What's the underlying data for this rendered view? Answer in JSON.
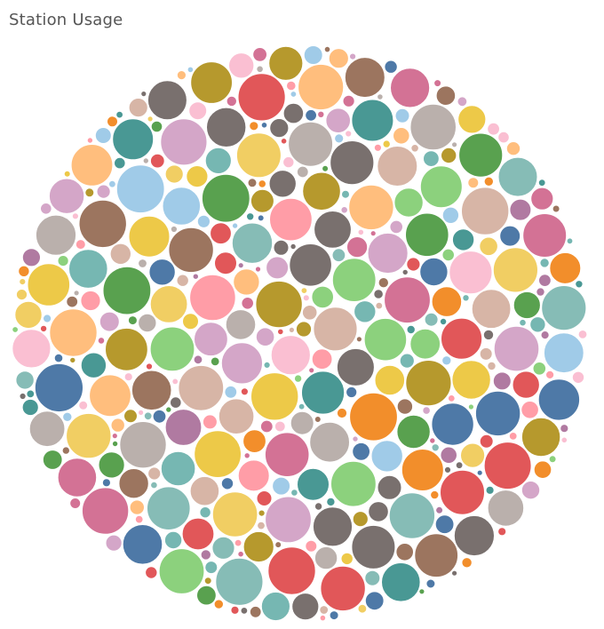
{
  "chart_data": {
    "type": "bubble",
    "title": "Station Usage",
    "legend": "none",
    "grid": false,
    "palette": [
      "#4e79a7",
      "#f28e2b",
      "#e15759",
      "#76b7b2",
      "#59a14f",
      "#edc948",
      "#b07aa1",
      "#ff9da7",
      "#9c755f",
      "#bab0ac",
      "#a0cbe8",
      "#ffbe7d",
      "#8cd17d",
      "#b6992d",
      "#499894",
      "#86bcb6",
      "#d37295",
      "#fabfd2",
      "#79706e",
      "#d4a6c8",
      "#d7b5a6",
      "#f1ce63"
    ],
    "bubble_count": 620,
    "min_value": 1,
    "max_value": 100
  }
}
